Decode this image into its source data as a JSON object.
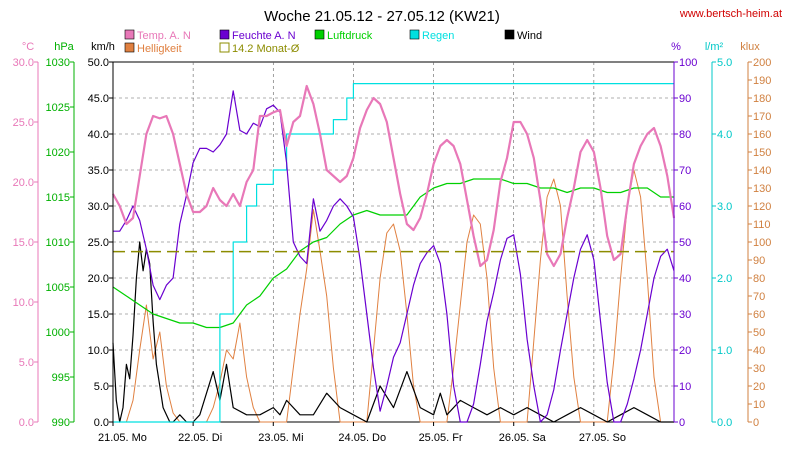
{
  "chart_data": {
    "type": "line",
    "title": "Woche 21.05.12 - 27.05.12 (KW21)",
    "source": "www.bertsch-heim.at",
    "x_labels": [
      "21.05.  Mo",
      "22.05.  Di",
      "23.05.  Mi",
      "24.05.  Do",
      "25.05.  Fr",
      "26.05.  Sa",
      "27.05.  So"
    ],
    "x_range_hours": [
      0,
      168
    ],
    "axes": [
      {
        "id": "temp",
        "unit": "°C",
        "min": 0,
        "max": 30,
        "ticks": [
          "0.0",
          "5.0",
          "10.0",
          "15.0",
          "20.0",
          "25.0",
          "30.0"
        ],
        "color": "#e878b8"
      },
      {
        "id": "hpa",
        "unit": "hPa",
        "min": 990,
        "max": 1030,
        "ticks": [
          "990",
          "995",
          "1000",
          "1005",
          "1010",
          "1015",
          "1020",
          "1025",
          "1030"
        ],
        "color": "#00b000"
      },
      {
        "id": "kmh",
        "unit": "km/h",
        "min": 0,
        "max": 50,
        "ticks": [
          "0.0",
          "5.0",
          "10.0",
          "15.0",
          "20.0",
          "25.0",
          "30.0",
          "35.0",
          "40.0",
          "45.0",
          "50.0"
        ],
        "color": "#000000"
      },
      {
        "id": "pct",
        "unit": "%",
        "min": 0,
        "max": 100,
        "ticks": [
          "0",
          "10",
          "20",
          "30",
          "40",
          "50",
          "60",
          "70",
          "80",
          "90",
          "100"
        ],
        "color": "#6a00d0"
      },
      {
        "id": "lm2",
        "unit": "l/m²",
        "min": 0,
        "max": 5,
        "ticks": [
          "0.0",
          "1.0",
          "2.0",
          "3.0",
          "4.0",
          "5.0"
        ],
        "color": "#00c8c8"
      },
      {
        "id": "klux",
        "unit": "klux",
        "min": 0,
        "max": 200,
        "ticks": [
          "0",
          "10",
          "20",
          "30",
          "40",
          "50",
          "60",
          "70",
          "80",
          "90",
          "100",
          "110",
          "120",
          "130",
          "140",
          "150",
          "160",
          "170",
          "180",
          "190",
          "200"
        ],
        "color": "#d08040"
      }
    ],
    "legend": [
      {
        "name": "Temp. A. N",
        "color": "#e878b8",
        "style": "box"
      },
      {
        "name": "Helligkeit",
        "color": "#e08040",
        "style": "box"
      },
      {
        "name": "Feuchte A. N",
        "color": "#6a00d0",
        "style": "box"
      },
      {
        "name": "14.2 Monat-Ø",
        "color": "#8c8c00",
        "style": "outline"
      },
      {
        "name": "Luftdruck",
        "color": "#00d000",
        "style": "box"
      },
      {
        "name": "Regen",
        "color": "#00e0e0",
        "style": "box"
      },
      {
        "name": "Wind",
        "color": "#000000",
        "style": "box"
      }
    ],
    "monthly_average": {
      "name": "14.2 Monat-Ø",
      "value": 14.2,
      "axis": "temp"
    },
    "series": [
      {
        "name": "Temp. A. N",
        "axis": "temp",
        "color": "#e878b8",
        "x": [
          0,
          2,
          4,
          6,
          8,
          10,
          12,
          14,
          16,
          18,
          20,
          22,
          24,
          26,
          28,
          30,
          32,
          34,
          36,
          38,
          40,
          42,
          44,
          46,
          48,
          50,
          52,
          54,
          56,
          58,
          60,
          62,
          64,
          66,
          68,
          70,
          72,
          74,
          76,
          78,
          80,
          82,
          84,
          86,
          88,
          90,
          92,
          94,
          96,
          98,
          100,
          102,
          104,
          106,
          108,
          110,
          112,
          114,
          116,
          118,
          120,
          122,
          124,
          126,
          128,
          130,
          132,
          134,
          136,
          138,
          140,
          142,
          144,
          146,
          148,
          150,
          152,
          154,
          156,
          158,
          160,
          162,
          164,
          166,
          168
        ],
        "values": [
          19,
          18,
          16.5,
          17,
          20.5,
          24,
          25.5,
          25.3,
          25.5,
          24,
          21.5,
          19,
          17.5,
          17.5,
          18,
          19.5,
          18.5,
          18,
          19,
          18,
          20,
          21,
          25.5,
          25.5,
          25.8,
          26,
          23,
          25,
          25.5,
          28,
          26.5,
          24,
          21,
          20.5,
          20,
          20.5,
          22,
          24.5,
          26,
          27,
          26.5,
          25,
          22,
          19,
          16.5,
          16,
          17,
          19,
          21.5,
          23,
          23.5,
          23,
          21.5,
          18.5,
          15.5,
          13,
          13.5,
          16,
          20,
          22,
          25,
          25,
          24,
          22,
          18.5,
          14,
          13,
          14,
          17,
          19.5,
          22.5,
          23.5,
          22.5,
          19.5,
          15.5,
          13.5,
          14,
          18,
          21.5,
          23,
          24,
          24.5,
          23,
          20.5,
          17
        ]
      },
      {
        "name": "Feuchte A. N",
        "axis": "pct",
        "color": "#6a00d0",
        "x": [
          0,
          2,
          4,
          6,
          8,
          10,
          12,
          14,
          16,
          18,
          20,
          22,
          24,
          26,
          28,
          30,
          32,
          34,
          36,
          38,
          40,
          42,
          44,
          46,
          48,
          50,
          52,
          54,
          56,
          58,
          60,
          62,
          64,
          66,
          68,
          70,
          72,
          74,
          76,
          78,
          80,
          82,
          84,
          86,
          88,
          90,
          92,
          94,
          96,
          98,
          100,
          102,
          104,
          106,
          108,
          110,
          112,
          114,
          116,
          118,
          120,
          122,
          124,
          126,
          128,
          130,
          132,
          134,
          136,
          138,
          140,
          142,
          144,
          146,
          148,
          150,
          152,
          154,
          156,
          158,
          160,
          162,
          164,
          166,
          168
        ],
        "values": [
          53,
          53,
          56,
          60,
          56,
          48,
          38,
          34,
          38,
          40,
          55,
          63,
          72,
          76,
          76,
          75,
          77,
          80,
          92,
          81,
          80,
          83,
          82,
          87,
          88,
          86,
          72,
          50,
          46,
          44,
          62,
          53,
          56,
          60,
          62,
          60,
          57,
          45,
          30,
          15,
          3,
          10,
          18,
          22,
          30,
          38,
          44,
          47,
          49,
          44,
          30,
          10,
          0,
          0,
          5,
          16,
          28,
          36,
          45,
          51,
          52,
          41,
          23,
          10,
          0,
          2,
          9,
          20,
          30,
          40,
          48,
          52,
          45,
          28,
          11,
          0,
          0,
          5,
          12,
          20,
          30,
          40,
          46,
          48,
          42
        ]
      },
      {
        "name": "Luftdruck",
        "axis": "hpa",
        "color": "#00d000",
        "x": [
          0,
          4,
          8,
          12,
          16,
          20,
          24,
          28,
          32,
          36,
          40,
          44,
          48,
          52,
          56,
          60,
          64,
          68,
          72,
          76,
          80,
          84,
          88,
          92,
          96,
          100,
          104,
          108,
          112,
          116,
          120,
          124,
          128,
          132,
          136,
          140,
          144,
          148,
          152,
          156,
          160,
          164,
          168
        ],
        "values": [
          1005,
          1004,
          1003,
          1002,
          1001.5,
          1001,
          1001,
          1000.5,
          1000.5,
          1001,
          1003,
          1004,
          1006,
          1007,
          1009,
          1010,
          1010.5,
          1012,
          1013,
          1013.5,
          1013,
          1013,
          1013,
          1015,
          1016,
          1016.5,
          1016.5,
          1017,
          1017,
          1017,
          1016.5,
          1016.5,
          1016,
          1016,
          1015.5,
          1016,
          1016,
          1015.5,
          1015.5,
          1016,
          1016,
          1015,
          1015
        ]
      },
      {
        "name": "Regen",
        "axis": "lm2",
        "color": "#00e0e0",
        "cumulative": true,
        "x": [
          0,
          28,
          32,
          36,
          40,
          43,
          48,
          52,
          56,
          60,
          64,
          66,
          70,
          72,
          168
        ],
        "values": [
          0,
          0,
          1.5,
          2.5,
          3.0,
          3.3,
          3.5,
          4.0,
          4.0,
          4.0,
          4.0,
          4.2,
          4.5,
          4.7,
          4.7
        ]
      },
      {
        "name": "Wind",
        "axis": "kmh",
        "color": "#000000",
        "x": [
          0,
          1,
          2,
          3,
          4,
          5,
          6,
          7,
          8,
          9,
          10,
          11,
          12,
          13,
          14,
          15,
          16,
          17,
          18,
          20,
          22,
          24,
          26,
          28,
          30,
          32,
          34,
          36,
          40,
          44,
          48,
          50,
          52,
          56,
          60,
          64,
          68,
          72,
          76,
          80,
          84,
          88,
          92,
          96,
          98,
          100,
          104,
          108,
          112,
          116,
          120,
          124,
          128,
          132,
          136,
          140,
          144,
          148,
          152,
          156,
          160,
          164,
          168
        ],
        "values": [
          11,
          3,
          0,
          2,
          8,
          6,
          12,
          20,
          25,
          21,
          24,
          22,
          14,
          8,
          5,
          2,
          1,
          0,
          0,
          1,
          0,
          0,
          1,
          4,
          7,
          3,
          8,
          2,
          1,
          1,
          2,
          1,
          3,
          1,
          1,
          4,
          2,
          1,
          0,
          5,
          2,
          7,
          2,
          1,
          4,
          1,
          3,
          2,
          1,
          2,
          1,
          2,
          1,
          0,
          1,
          2,
          1,
          0,
          1,
          2,
          1,
          0,
          0
        ]
      },
      {
        "name": "Helligkeit",
        "axis": "klux",
        "color": "#e08040",
        "x": [
          0,
          4,
          6,
          8,
          10,
          12,
          14,
          16,
          18,
          20,
          28,
          30,
          32,
          34,
          36,
          38,
          40,
          42,
          44,
          52,
          54,
          56,
          58,
          60,
          62,
          64,
          66,
          68,
          76,
          78,
          80,
          82,
          84,
          86,
          88,
          90,
          92,
          100,
          102,
          104,
          106,
          108,
          110,
          112,
          114,
          116,
          124,
          126,
          128,
          130,
          132,
          134,
          136,
          138,
          140,
          148,
          150,
          152,
          154,
          156,
          158,
          160,
          162,
          164,
          168
        ],
        "values": [
          0,
          0,
          12,
          40,
          65,
          35,
          50,
          20,
          5,
          0,
          0,
          8,
          22,
          40,
          35,
          55,
          25,
          8,
          0,
          0,
          30,
          60,
          85,
          118,
          95,
          70,
          30,
          0,
          0,
          40,
          80,
          105,
          110,
          95,
          60,
          20,
          0,
          0,
          30,
          65,
          100,
          115,
          110,
          80,
          30,
          0,
          0,
          45,
          90,
          125,
          135,
          120,
          70,
          25,
          0,
          0,
          35,
          80,
          120,
          140,
          125,
          80,
          25,
          0,
          0
        ]
      }
    ]
  }
}
